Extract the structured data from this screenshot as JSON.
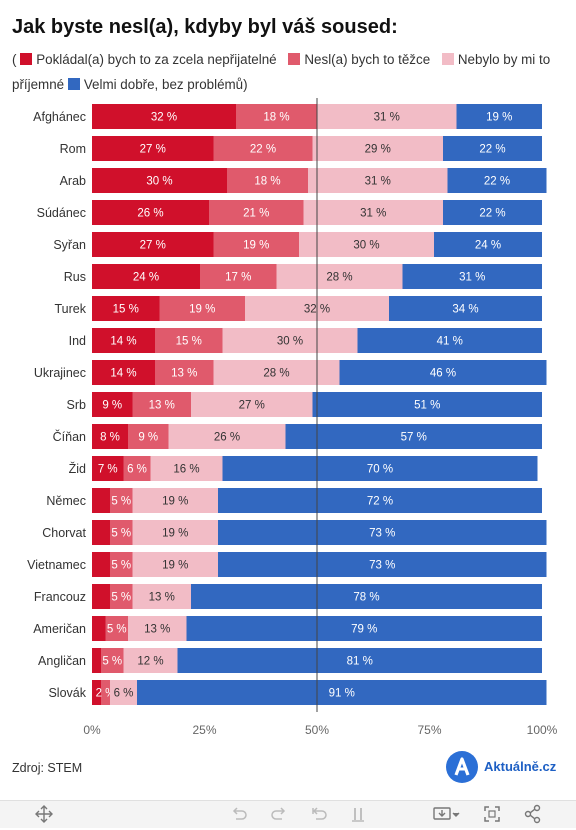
{
  "title": "Jak byste nesl(a), kdyby byl váš soused:",
  "legend": {
    "prefix": "(",
    "items": [
      {
        "label": "Pokládal(a) bych to za zcela nepřijatelné",
        "color": "#d0102b"
      },
      {
        "label": "Nesl(a) bych to těžce",
        "color": "#e05a6c"
      },
      {
        "label": "Nebylo by mi to příjemné",
        "color": "#f2bcc6"
      },
      {
        "label": "Velmi dobře, bez problémů)",
        "color": "#3268c0"
      }
    ]
  },
  "chart_data": {
    "type": "bar",
    "orientation": "horizontal",
    "stacked": true,
    "categories": [
      "Afghánec",
      "Rom",
      "Arab",
      "Súdánec",
      "Syřan",
      "Rus",
      "Turek",
      "Ind",
      "Ukrajinec",
      "Srb",
      "Číňan",
      "Žid",
      "Němec",
      "Chorvat",
      "Vietnamec",
      "Francouz",
      "Američan",
      "Angličan",
      "Slovák"
    ],
    "series": [
      {
        "name": "Pokládal(a) bych to za zcela nepřijatelné",
        "color": "#d0102b",
        "values": [
          32,
          27,
          30,
          26,
          27,
          24,
          15,
          14,
          14,
          9,
          8,
          7,
          4,
          4,
          4,
          4,
          3,
          2,
          2
        ]
      },
      {
        "name": "Nesl(a) bych to těžce",
        "color": "#e05a6c",
        "values": [
          18,
          22,
          18,
          21,
          19,
          17,
          19,
          15,
          13,
          13,
          9,
          6,
          5,
          5,
          5,
          5,
          5,
          5,
          2
        ]
      },
      {
        "name": "Nebylo by mi to příjemné",
        "color": "#f2bcc6",
        "values": [
          31,
          29,
          31,
          31,
          30,
          28,
          32,
          30,
          28,
          27,
          26,
          16,
          19,
          19,
          19,
          13,
          13,
          12,
          6
        ]
      },
      {
        "name": "Velmi dobře, bez problémů",
        "color": "#3268c0",
        "values": [
          19,
          22,
          22,
          22,
          24,
          31,
          34,
          41,
          46,
          51,
          57,
          70,
          72,
          73,
          73,
          78,
          79,
          81,
          91
        ]
      }
    ],
    "label_suffix": " %",
    "hidden_labels": [
      [
        12,
        0
      ],
      [
        13,
        0
      ],
      [
        14,
        0
      ],
      [
        15,
        0
      ],
      [
        16,
        0
      ],
      [
        17,
        0
      ],
      [
        18,
        0
      ]
    ],
    "xlim": [
      0,
      100
    ],
    "xticks": [
      0,
      25,
      50,
      75,
      100
    ],
    "xtick_labels": [
      "0%",
      "25%",
      "50%",
      "75%",
      "100%"
    ],
    "reference_line": 50,
    "grid": false
  },
  "source": "Zdroj: STEM",
  "logo_text": "Aktuálně.cz",
  "toolbar": {
    "icons": [
      "move-icon",
      "undo-icon",
      "redo-icon",
      "revert-icon",
      "pause-icon",
      "download-icon",
      "fullscreen-icon",
      "share-icon"
    ]
  }
}
